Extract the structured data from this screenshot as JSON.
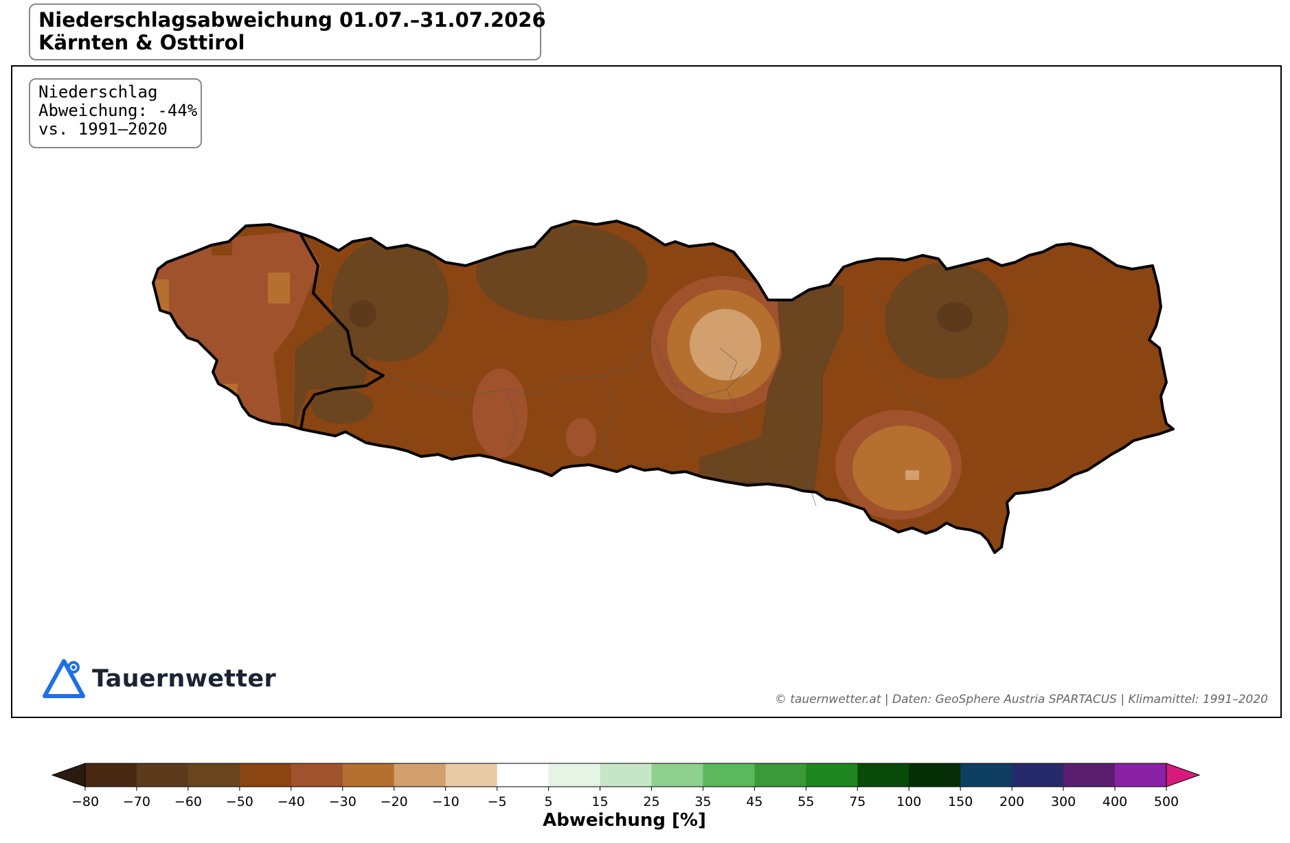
{
  "title": {
    "line1": "Niederschlagsabweichung 01.07.–31.07.2026",
    "line2": "Kärnten & Osttirol"
  },
  "info_box": {
    "line1": "Niederschlag",
    "line2": "Abweichung: -44%",
    "line3": "vs. 1991–2020"
  },
  "logo": {
    "text": "Tauernwetter",
    "icon": "mountain-triangle-icon",
    "color": "#1f6fe8"
  },
  "credit": "© tauernwetter.at | Daten: GeoSphere Austria SPARTACUS | Klimamittel: 1991–2020",
  "colorbar": {
    "label": "Abweichung [%]",
    "ticks": [
      "−80",
      "−70",
      "−60",
      "−50",
      "−40",
      "−30",
      "−20",
      "−10",
      "−5",
      "5",
      "15",
      "25",
      "35",
      "45",
      "55",
      "75",
      "100",
      "150",
      "200",
      "300",
      "400",
      "500"
    ],
    "under_color": "#2b1a10",
    "over_color": "#d81b7a",
    "colors": [
      "#4a2913",
      "#5e3a1d",
      "#6b4420",
      "#8a4513",
      "#a0522d",
      "#b5702f",
      "#d2a06f",
      "#e8cba6",
      "#ffffff",
      "#e6f4e6",
      "#c7e6c7",
      "#8fcf8f",
      "#5cb85c",
      "#3a9a3a",
      "#1e861e",
      "#0a4a0a",
      "#062e06",
      "#0e3f63",
      "#272a6a",
      "#5a1e6f",
      "#8b22a5"
    ]
  },
  "map": {
    "region_name": "Kärnten & Osttirol",
    "mean_anomaly_percent": -44,
    "climate_period": "1991–2020",
    "palette": {
      "base": "#8a4513",
      "dark": "#6b4420",
      "darker": "#5e3a1d",
      "darkest": "#4a2913",
      "mid": "#a0522d",
      "light": "#b5702f",
      "lighter": "#d2a06f"
    }
  }
}
